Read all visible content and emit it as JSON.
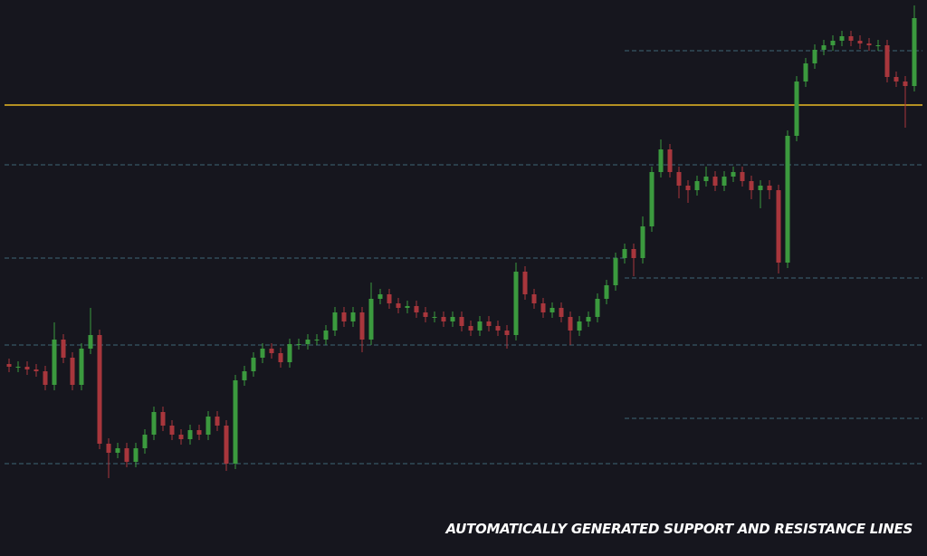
{
  "chart_data": {
    "type": "candlestick",
    "caption": "AUTOMATICALLY GENERATED SUPPORT AND RESISTANCE LINES",
    "ylim": [
      0,
      614
    ],
    "up_color": "#3b9a3e",
    "down_color": "#a8363c",
    "open": [
      212,
      209,
      209,
      206,
      204,
      189,
      239,
      219,
      189,
      229,
      244,
      124,
      114,
      119,
      104,
      119,
      134,
      159,
      144,
      134,
      129,
      139,
      134,
      154,
      144,
      102,
      194,
      204,
      219,
      229,
      224,
      214,
      234,
      234,
      239,
      239,
      249,
      269,
      259,
      269,
      239,
      284,
      289,
      279,
      274,
      276,
      269,
      264,
      264,
      259,
      264,
      254,
      249,
      259,
      254,
      249,
      244,
      314,
      289,
      279,
      269,
      274,
      264,
      249,
      259,
      264,
      284,
      299,
      329,
      339,
      329,
      364,
      424,
      449,
      424,
      409,
      404,
      414,
      419,
      409,
      419,
      424,
      414,
      404,
      409,
      404,
      324,
      464,
      524,
      544,
      559,
      564,
      569,
      574,
      569,
      566,
      564,
      564,
      529,
      524,
      519
    ],
    "high": [
      218,
      215,
      215,
      212,
      210,
      258,
      245,
      225,
      235,
      274,
      250,
      130,
      125,
      125,
      125,
      140,
      165,
      165,
      150,
      140,
      145,
      145,
      160,
      160,
      150,
      200,
      210,
      225,
      235,
      235,
      230,
      240,
      240,
      245,
      245,
      255,
      275,
      275,
      275,
      275,
      302,
      295,
      295,
      285,
      282,
      282,
      275,
      270,
      270,
      270,
      270,
      260,
      265,
      265,
      260,
      255,
      324,
      320,
      295,
      285,
      280,
      280,
      270,
      265,
      270,
      290,
      305,
      335,
      345,
      345,
      375,
      430,
      460,
      455,
      430,
      415,
      420,
      430,
      425,
      425,
      430,
      430,
      420,
      415,
      415,
      410,
      470,
      530,
      550,
      565,
      570,
      575,
      580,
      580,
      575,
      572,
      570,
      570,
      535,
      530,
      608
    ],
    "low": [
      203,
      203,
      200,
      198,
      183,
      183,
      213,
      183,
      183,
      223,
      118,
      86,
      108,
      98,
      98,
      113,
      128,
      138,
      128,
      123,
      123,
      128,
      128,
      138,
      94,
      96,
      188,
      198,
      213,
      218,
      208,
      208,
      228,
      228,
      233,
      233,
      243,
      253,
      253,
      225,
      233,
      278,
      273,
      268,
      268,
      263,
      258,
      258,
      253,
      253,
      248,
      243,
      243,
      248,
      243,
      229,
      238,
      283,
      273,
      263,
      263,
      258,
      233,
      243,
      253,
      258,
      278,
      293,
      323,
      309,
      323,
      358,
      418,
      418,
      395,
      390,
      398,
      408,
      403,
      403,
      413,
      408,
      394,
      384,
      394,
      312,
      318,
      458,
      518,
      538,
      553,
      558,
      563,
      563,
      560,
      558,
      558,
      523,
      518,
      473,
      513
    ],
    "close": [
      209,
      209,
      206,
      204,
      189,
      239,
      219,
      189,
      229,
      244,
      124,
      114,
      119,
      104,
      119,
      134,
      159,
      144,
      134,
      129,
      139,
      134,
      154,
      144,
      102,
      194,
      204,
      219,
      229,
      224,
      214,
      234,
      234,
      239,
      239,
      249,
      269,
      259,
      269,
      239,
      284,
      289,
      279,
      274,
      276,
      269,
      264,
      264,
      259,
      264,
      254,
      249,
      259,
      254,
      249,
      244,
      314,
      289,
      279,
      269,
      274,
      264,
      249,
      259,
      264,
      284,
      299,
      329,
      339,
      329,
      364,
      424,
      449,
      424,
      409,
      404,
      414,
      419,
      409,
      419,
      424,
      414,
      404,
      409,
      404,
      324,
      464,
      524,
      544,
      559,
      564,
      569,
      574,
      569,
      566,
      564,
      564,
      529,
      524,
      519,
      594
    ],
    "levels": [
      {
        "value": 498,
        "color": "#e8b923",
        "dashed": false,
        "bars": [
          0,
          100
        ]
      },
      {
        "value": 558,
        "color": "#3f6675",
        "dashed": true,
        "bars": [
          68,
          100
        ]
      },
      {
        "value": 432,
        "color": "#3f6675",
        "dashed": true,
        "bars": [
          0,
          100
        ]
      },
      {
        "value": 329,
        "color": "#3f6675",
        "dashed": true,
        "bars": [
          0,
          68
        ]
      },
      {
        "value": 307,
        "color": "#3f6675",
        "dashed": true,
        "bars": [
          68,
          100
        ]
      },
      {
        "value": 233,
        "color": "#3f6675",
        "dashed": true,
        "bars": [
          0,
          100
        ]
      },
      {
        "value": 152,
        "color": "#3f6675",
        "dashed": true,
        "bars": [
          68,
          100
        ]
      },
      {
        "value": 102,
        "color": "#3f6675",
        "dashed": true,
        "bars": [
          0,
          100
        ]
      }
    ]
  }
}
